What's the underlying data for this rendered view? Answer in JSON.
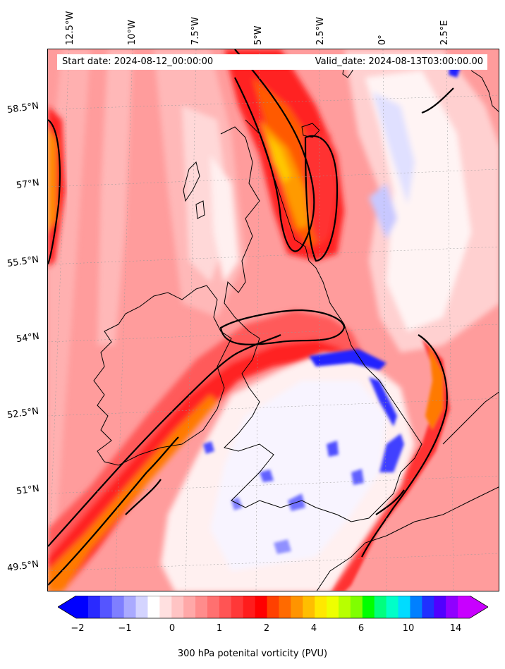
{
  "header": {
    "start_date": "Start date: 2024-08-12_00:00:00",
    "valid_date": "Valid_date: 2024-08-13T03:00:00.00"
  },
  "axes": {
    "longitude_labels": [
      "12.5°W",
      "10°W",
      "7.5°W",
      "5°W",
      "2.5°W",
      "0°",
      "2.5°E"
    ],
    "latitude_labels": [
      "58.5°N",
      "57°N",
      "55.5°N",
      "54°N",
      "52.5°N",
      "51°N",
      "49.5°N"
    ]
  },
  "colorbar": {
    "label": "300 hPa potenital vorticity (PVU)",
    "tick_labels": [
      "−2",
      "−1",
      "0",
      "1",
      "2",
      "4",
      "6",
      "10",
      "14"
    ],
    "colors": [
      "#0000ff",
      "#2a2aff",
      "#5555ff",
      "#7f7fff",
      "#aaaaff",
      "#d4d4ff",
      "#ffffff",
      "#ffe0e0",
      "#ffc4c4",
      "#ffa8a8",
      "#ff8c8c",
      "#ff7070",
      "#ff5454",
      "#ff3838",
      "#ff1c1c",
      "#ff0000",
      "#ff4000",
      "#ff6a00",
      "#ff9400",
      "#ffbe00",
      "#ffe800",
      "#eeff00",
      "#b8ff00",
      "#7fff00",
      "#00ff00",
      "#00ff7f",
      "#00ffc8",
      "#00dcff",
      "#0080ff",
      "#2030ff",
      "#5000ff",
      "#9000ff",
      "#c800ff"
    ],
    "under_color": "#0000ff",
    "over_color": "#c800ff"
  },
  "legend_colors": {
    "background_field": "#ff8080",
    "strong_ridge": "#ff2020",
    "peak": "#ff8c00",
    "negative": "#3030ff",
    "coast": "#000000"
  }
}
